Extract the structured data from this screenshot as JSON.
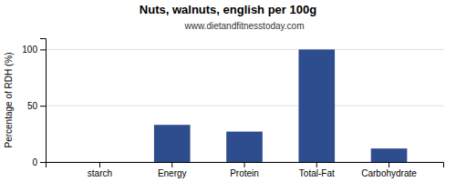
{
  "chart_data": {
    "type": "bar",
    "title": "Nuts, walnuts, english per 100g",
    "subtitle": "www.dietandfitnesstoday.com",
    "ylabel": "Percentage of RDH (%)",
    "categories": [
      "starch",
      "Energy",
      "Protein",
      "Total-Fat",
      "Carbohydrate"
    ],
    "values": [
      0,
      33,
      27,
      100,
      12
    ],
    "color": "#2e4d8e",
    "ylim": [
      0,
      110
    ],
    "yticks": [
      0,
      50,
      100
    ],
    "grid": true
  }
}
